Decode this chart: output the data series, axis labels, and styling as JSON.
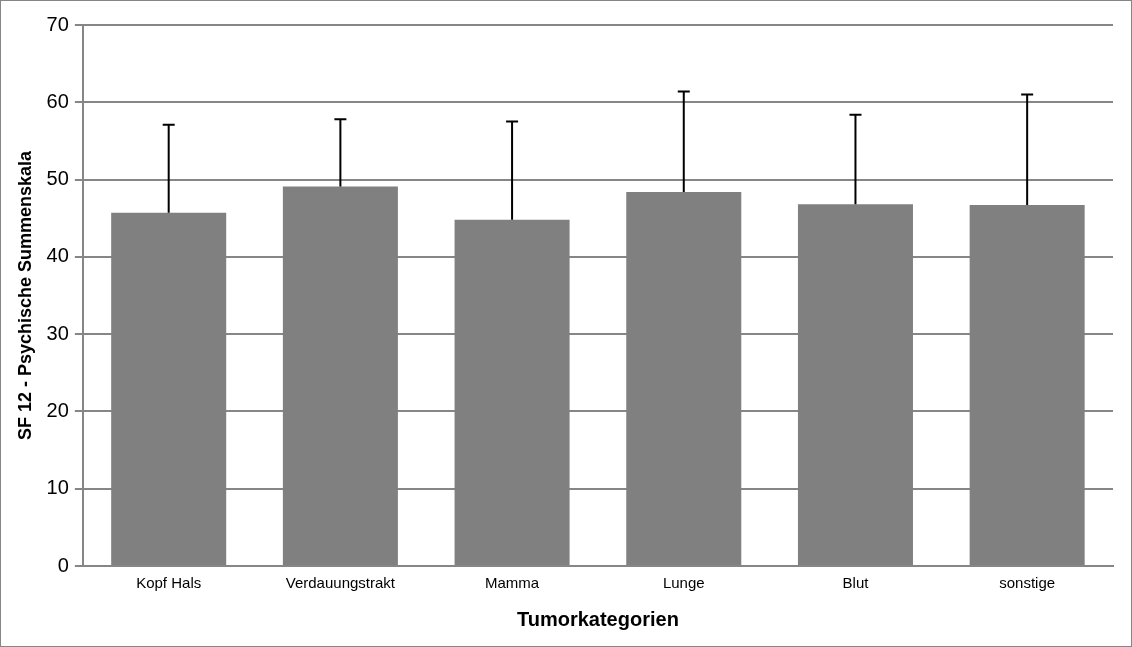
{
  "chart_data": {
    "type": "bar",
    "xlabel": "Tumorkategorien",
    "ylabel": "SF 12 - Psychische Summenskala",
    "categories": [
      "Kopf Hals",
      "Verdauungstrakt",
      "Mamma",
      "Lunge",
      "Blut",
      "sonstige"
    ],
    "values": [
      45.7,
      49.1,
      44.8,
      48.4,
      46.8,
      46.7
    ],
    "errors": [
      [
        45.7,
        57.1
      ],
      [
        49.1,
        57.8
      ],
      [
        44.8,
        57.5
      ],
      [
        48.4,
        61.4
      ],
      [
        46.8,
        58.4
      ],
      [
        46.7,
        61.0
      ]
    ],
    "color": "#808080",
    "ylim": [
      0,
      70
    ],
    "yticks": [
      0,
      10,
      20,
      30,
      40,
      50,
      60,
      70
    ],
    "grid": "y"
  }
}
